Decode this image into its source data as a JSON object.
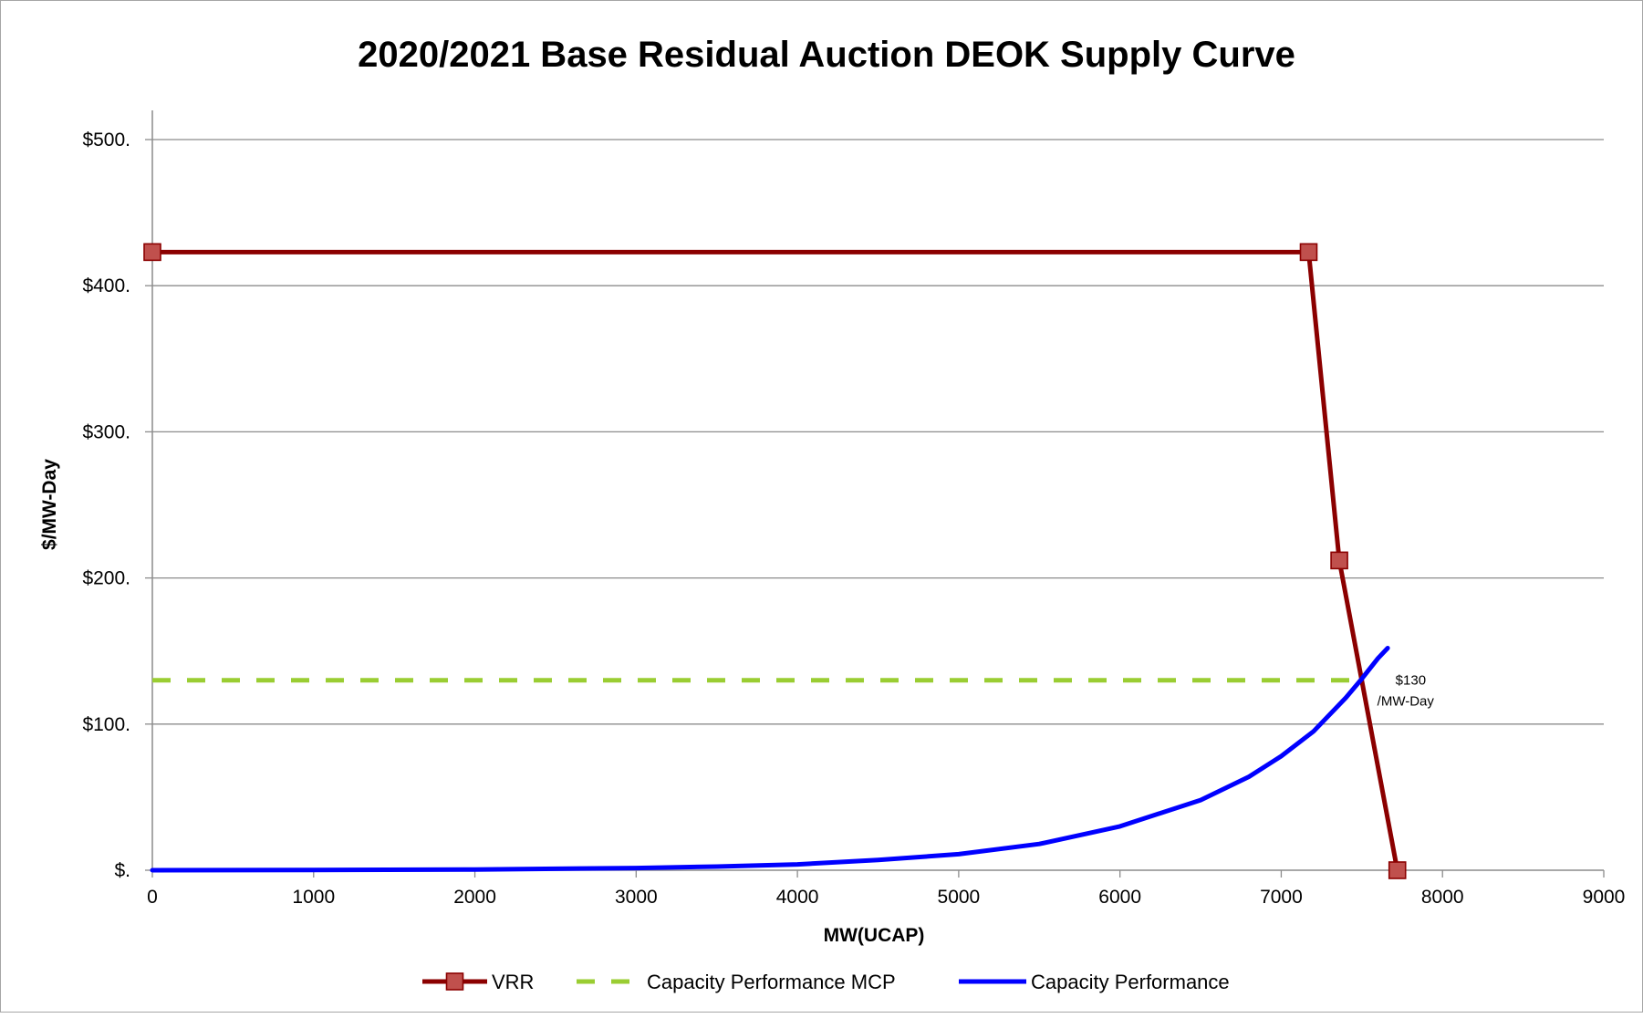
{
  "chart_data": {
    "type": "line",
    "title": "2020/2021 Base Residual Auction DEOK Supply Curve",
    "xlabel": "MW(UCAP)",
    "ylabel": "$/MW-Day",
    "xlim": [
      0,
      9000
    ],
    "ylim": [
      0,
      500
    ],
    "x_ticks": [
      0,
      1000,
      2000,
      3000,
      4000,
      5000,
      6000,
      7000,
      8000,
      9000
    ],
    "x_tick_labels": [
      "0",
      "1000",
      "2000",
      "3000",
      "4000",
      "5000",
      "6000",
      "7000",
      "8000",
      "9000"
    ],
    "y_ticks": [
      0,
      100,
      200,
      300,
      400,
      500
    ],
    "y_tick_labels": [
      "$.",
      "$100.",
      "$200.",
      "$300.",
      "$400.",
      "$500."
    ],
    "grid": "horizontal",
    "legend_position": "bottom",
    "series": [
      {
        "name": "VRR",
        "color": "#8b0000",
        "marker": "square",
        "marker_color": "#c0504d",
        "points": [
          [
            0,
            423
          ],
          [
            7170,
            423
          ],
          [
            7360,
            212
          ],
          [
            7720,
            0
          ]
        ]
      },
      {
        "name": "Capacity Performance MCP",
        "color": "#9acd32",
        "style": "dashed",
        "points": [
          [
            0,
            130
          ],
          [
            7430,
            130
          ]
        ]
      },
      {
        "name": "Capacity Performance",
        "color": "#0000ff",
        "points": [
          [
            0,
            0
          ],
          [
            1000,
            0.2
          ],
          [
            2000,
            0.5
          ],
          [
            3000,
            1.5
          ],
          [
            3500,
            2.5
          ],
          [
            4000,
            4
          ],
          [
            4500,
            7
          ],
          [
            5000,
            11
          ],
          [
            5500,
            18
          ],
          [
            6000,
            30
          ],
          [
            6500,
            48
          ],
          [
            6800,
            64
          ],
          [
            7000,
            78
          ],
          [
            7200,
            95
          ],
          [
            7400,
            118
          ],
          [
            7500,
            131
          ],
          [
            7600,
            145
          ],
          [
            7660,
            152
          ]
        ]
      }
    ],
    "annotations": [
      {
        "text_line1": "$130",
        "text_line2": "/MW-Day",
        "x": 7550,
        "y": 130
      }
    ]
  }
}
